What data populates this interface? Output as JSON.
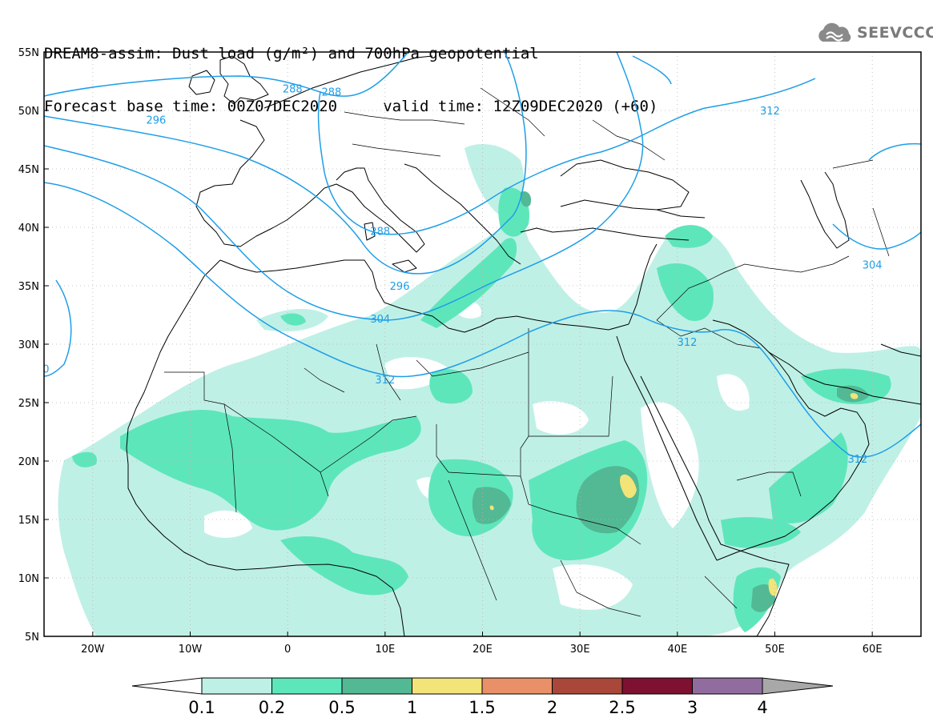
{
  "title": {
    "line1": "DREAM8-assim: Dust load (g/m²) and 700hPa geopotential",
    "line2": "Forecast base time: 00Z07DEC2020     valid time: 12Z09DEC2020 (+60)"
  },
  "logo": {
    "text": "SEEVCCC",
    "icon": "cloud-icon"
  },
  "map": {
    "lon_range": [
      -25,
      65
    ],
    "lat_range": [
      5,
      55
    ],
    "lat_ticks": [
      {
        "value": 55,
        "label": "55N"
      },
      {
        "value": 50,
        "label": "50N"
      },
      {
        "value": 45,
        "label": "45N"
      },
      {
        "value": 40,
        "label": "40N"
      },
      {
        "value": 35,
        "label": "35N"
      },
      {
        "value": 30,
        "label": "30N"
      },
      {
        "value": 25,
        "label": "25N"
      },
      {
        "value": 20,
        "label": "20N"
      },
      {
        "value": 15,
        "label": "15N"
      },
      {
        "value": 10,
        "label": "10N"
      },
      {
        "value": 5,
        "label": "5N"
      }
    ],
    "lon_ticks": [
      {
        "value": -20,
        "label": "20W"
      },
      {
        "value": -10,
        "label": "10W"
      },
      {
        "value": 0,
        "label": "0"
      },
      {
        "value": 10,
        "label": "10E"
      },
      {
        "value": 20,
        "label": "20E"
      },
      {
        "value": 30,
        "label": "30E"
      },
      {
        "value": 40,
        "label": "40E"
      },
      {
        "value": 50,
        "label": "50E"
      },
      {
        "value": 60,
        "label": "60E"
      }
    ],
    "contour_labels": [
      {
        "text": "288",
        "lon": 0.5,
        "lat": 51.9
      },
      {
        "text": "288",
        "lon": 4.5,
        "lat": 51.6
      },
      {
        "text": "296",
        "lon": -13.5,
        "lat": 49.2
      },
      {
        "text": "312",
        "lon": 49.5,
        "lat": 50.0
      },
      {
        "text": "288",
        "lon": 9.5,
        "lat": 39.7
      },
      {
        "text": "304",
        "lon": 60.0,
        "lat": 36.8
      },
      {
        "text": "296",
        "lon": 11.5,
        "lat": 35.0
      },
      {
        "text": "304",
        "lon": 9.5,
        "lat": 32.2
      },
      {
        "text": "312",
        "lon": 41.0,
        "lat": 30.2
      },
      {
        "text": "312",
        "lon": 10.0,
        "lat": 27.0
      },
      {
        "text": "312",
        "lon": 58.5,
        "lat": 20.2
      },
      {
        "text": "0",
        "lon": -24.8,
        "lat": 27.9
      }
    ]
  },
  "colorbar": {
    "colors": [
      "#ffffff",
      "#bff0e6",
      "#5ee6bb",
      "#52b994",
      "#f2e478",
      "#e99068",
      "#a8473a",
      "#7e1131",
      "#916d9f",
      "#a8a8a8"
    ],
    "labels": [
      "0.1",
      "0.2",
      "0.5",
      "1",
      "1.5",
      "2",
      "2.5",
      "3",
      "4"
    ]
  }
}
